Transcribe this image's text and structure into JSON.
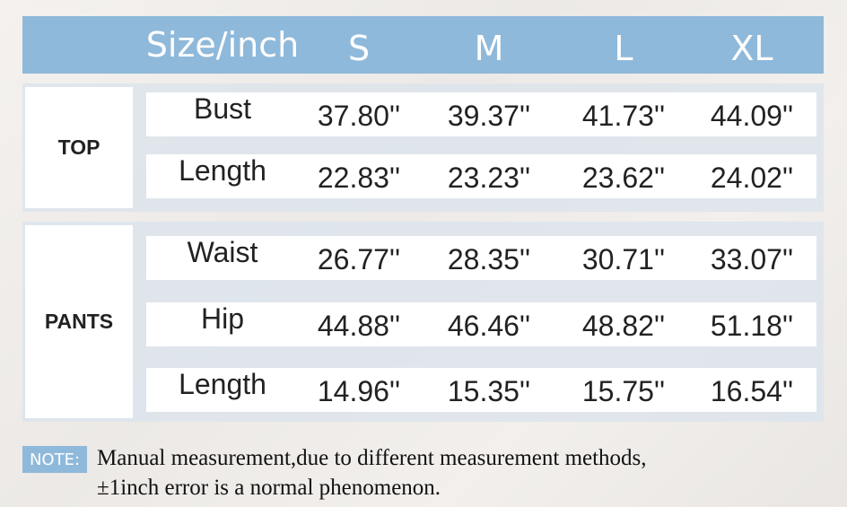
{
  "header": {
    "label": "Size/inch",
    "sizes": [
      "S",
      "M",
      "L",
      "XL"
    ]
  },
  "sections": [
    {
      "name": "TOP",
      "rows": [
        {
          "label": "Bust",
          "values": [
            "37.80''",
            "39.37''",
            "41.73''",
            "44.09''"
          ]
        },
        {
          "label": "Length",
          "values": [
            "22.83''",
            "23.23''",
            "23.62''",
            "24.02''"
          ]
        }
      ]
    },
    {
      "name": "PANTS",
      "rows": [
        {
          "label": "Waist",
          "values": [
            "26.77''",
            "28.35''",
            "30.71''",
            "33.07''"
          ]
        },
        {
          "label": "Hip",
          "values": [
            "44.88''",
            "46.46''",
            "48.82''",
            "51.18''"
          ]
        },
        {
          "label": "Length",
          "values": [
            "14.96''",
            "15.35''",
            "15.75''",
            "16.54''"
          ]
        }
      ]
    }
  ],
  "note": {
    "tag": "NOTE:",
    "lines": [
      "Manual measurement,due to different measurement methods,",
      "±1inch error is a normal phenomenon."
    ]
  }
}
